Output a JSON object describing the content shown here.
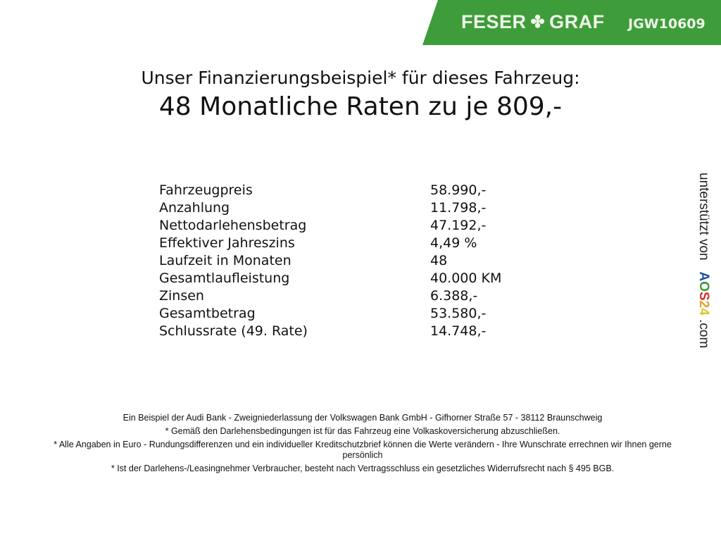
{
  "header": {
    "brand": "FESER",
    "brand2": "GRAF",
    "code": "JGW10609",
    "brand_color": "#3e9d3a"
  },
  "title": {
    "line1": "Unser Finanzierungsbeispiel* für dieses Fahrzeug:",
    "line2": "48 Monatliche Raten zu je 809,-"
  },
  "rows": [
    {
      "label": "Fahrzeugpreis",
      "value": "58.990,-"
    },
    {
      "label": "Anzahlung",
      "value": "11.798,-"
    },
    {
      "label": "Nettodarlehensbetrag",
      "value": "47.192,-"
    },
    {
      "label": "Effektiver Jahreszins",
      "value": "4,49 %"
    },
    {
      "label": "Laufzeit in Monaten",
      "value": "48"
    },
    {
      "label": "Gesamtlaufleistung",
      "value": "40.000 KM"
    },
    {
      "label": "Zinsen",
      "value": "6.388,-"
    },
    {
      "label": "Gesamtbetrag",
      "value": "53.580,-"
    },
    {
      "label": "Schlussrate (49. Rate)",
      "value": "14.748,-"
    }
  ],
  "side": {
    "text": "unterstützt von",
    "a": "A",
    "o": "O",
    "s": "S",
    "two": "2",
    "four": "4",
    "com": ".com"
  },
  "footer": [
    "Ein Beispiel der Audi Bank - Zweigniederlassung der Volkswagen Bank GmbH - Gifhorner Straße 57 - 38112 Braunschweig",
    "* Gemäß den Darlehensbedingungen ist für das Fahrzeug eine Volkaskoversicherung abzuschließen.",
    "* Alle Angaben in Euro - Rundungsdifferenzen und ein individueller Kreditschutzbrief können die Werte verändern - Ihre Wunschrate errechnen wir Ihnen gerne persönlich",
    "* Ist der Darlehens-/Leasingnehmer Verbraucher, besteht nach Vertragsschluss ein gesetzliches Widerrufsrecht nach § 495 BGB."
  ]
}
